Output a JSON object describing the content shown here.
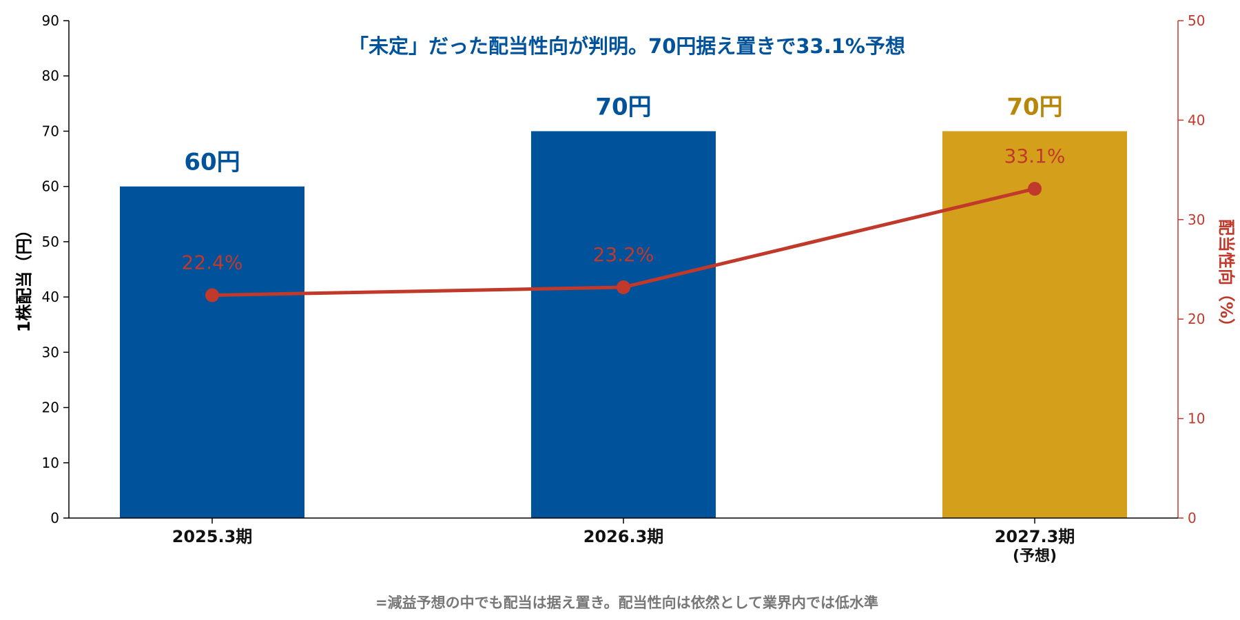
{
  "chart_data": {
    "type": "bar",
    "title": "「未定」だった配当性向が判明。70円据え置きで33.1%予想",
    "footnote": "=減益予想の中でも配当は据え置き。配当性向は依然として業界内では低水準",
    "categories": [
      "2025.3期",
      "2026.3期",
      "2027.3期"
    ],
    "category_sublabels": [
      "",
      "",
      "(予想)"
    ],
    "ylabel": "1株配当（円）",
    "y2label": "配当性向（%）",
    "ylim": [
      0,
      90
    ],
    "yticks": [
      0,
      10,
      20,
      30,
      40,
      50,
      60,
      70,
      80,
      90
    ],
    "y2lim": [
      0,
      50
    ],
    "y2ticks": [
      0,
      10,
      20,
      30,
      40,
      50
    ],
    "grid": false,
    "series": [
      {
        "type": "bar",
        "axis": "left",
        "values": [
          60,
          70,
          70
        ],
        "data_labels": [
          "60円",
          "70円",
          "70円"
        ],
        "colors": [
          "#00529b",
          "#00529b",
          "#d4a01c"
        ],
        "label_colors": [
          "#00529b",
          "#00529b",
          "#b8860b"
        ]
      },
      {
        "type": "line",
        "axis": "right",
        "values": [
          22.4,
          23.2,
          33.1
        ],
        "data_labels": [
          "22.4%",
          "23.2%",
          "33.1%"
        ],
        "color": "#c0392b"
      }
    ],
    "colors": {
      "title": "#00529b",
      "left_axis": "#000000",
      "right_axis": "#c0392b",
      "footnote": "#777777"
    }
  }
}
